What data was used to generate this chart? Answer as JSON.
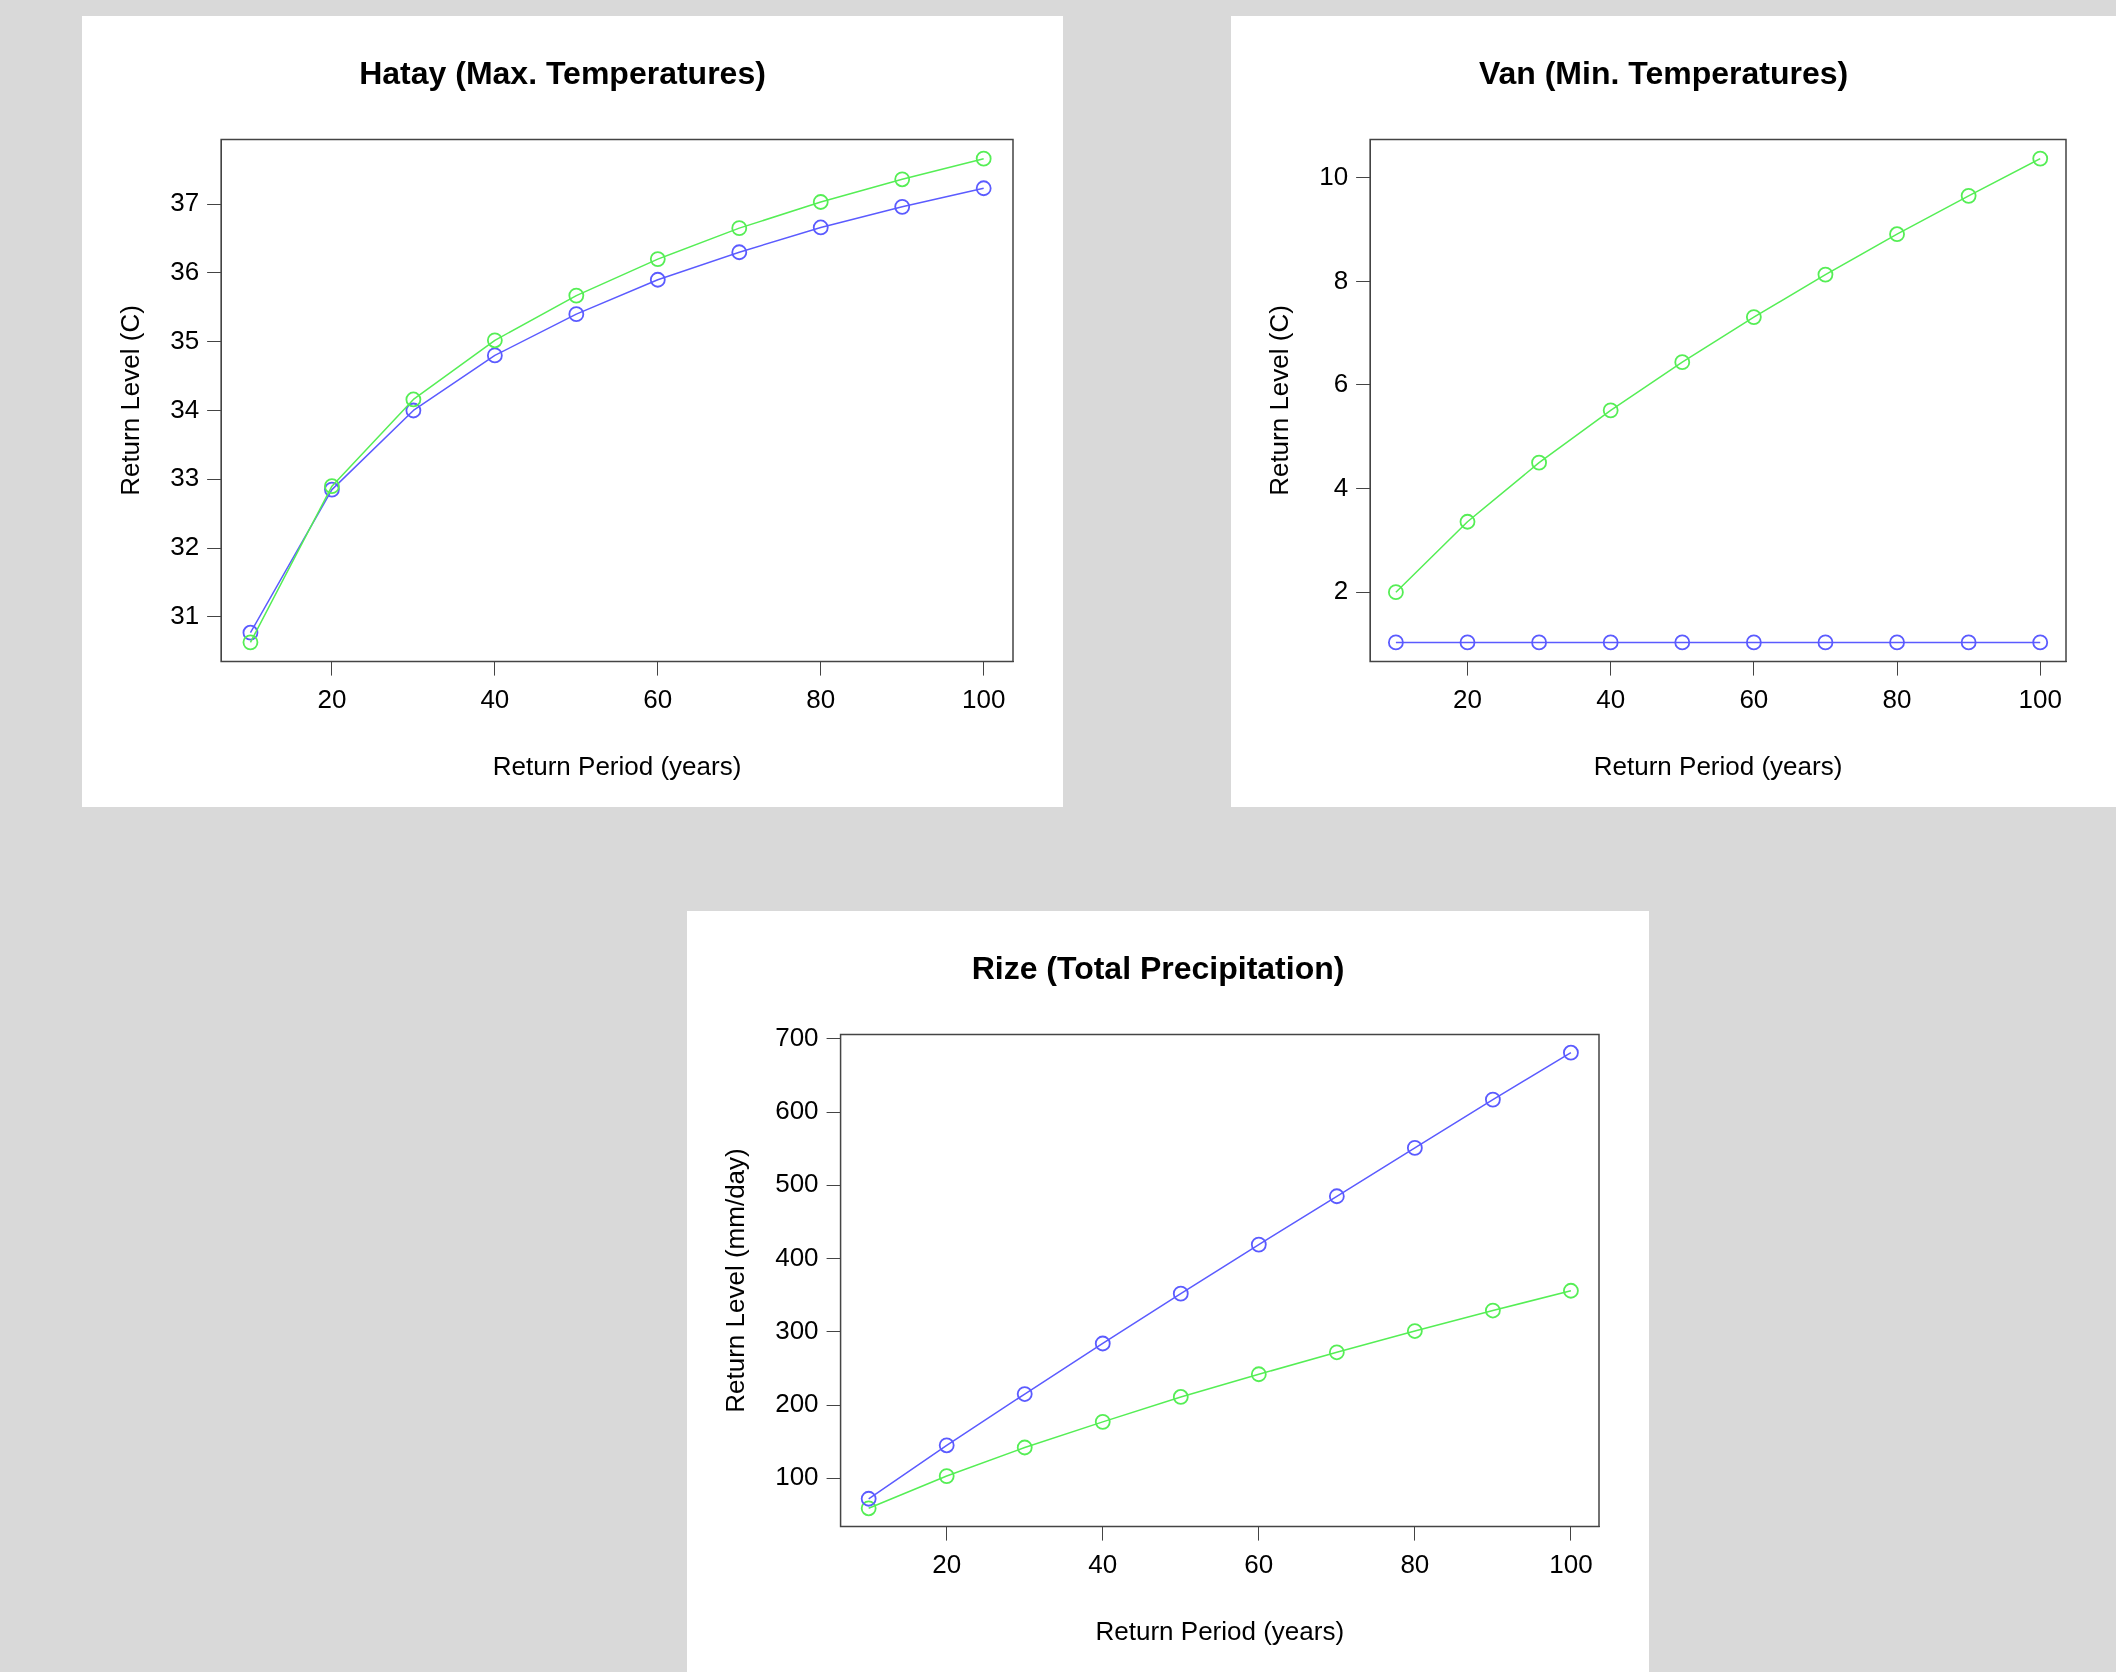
{
  "chart_data": [
    {
      "type": "line",
      "title": "Hatay (Max. Temperatures)",
      "xlabel": "Return Period (years)",
      "ylabel": "Return Level (C)",
      "x": [
        10,
        20,
        30,
        40,
        50,
        60,
        70,
        80,
        90,
        100
      ],
      "xlim": [
        6.4,
        103.6
      ],
      "xticks": [
        20,
        40,
        60,
        80,
        100
      ],
      "ylim": [
        30.35,
        37.94
      ],
      "yticks": [
        31,
        32,
        33,
        34,
        35,
        36,
        37
      ],
      "grid": false,
      "marker": "circle",
      "line_style": "solid",
      "series": [
        {
          "color": "#55ee55",
          "values": [
            30.63,
            32.9,
            34.16,
            35.02,
            35.67,
            36.2,
            36.65,
            37.03,
            37.36,
            37.66
          ]
        },
        {
          "color": "#5b5bff",
          "values": [
            30.77,
            32.85,
            34.0,
            34.8,
            35.4,
            35.9,
            36.3,
            36.66,
            36.96,
            37.23
          ]
        }
      ]
    },
    {
      "type": "line",
      "title": "Van (Min. Temperatures)",
      "xlabel": "Return Period (years)",
      "ylabel": "Return Level (C)",
      "x": [
        10,
        20,
        30,
        40,
        50,
        60,
        70,
        80,
        90,
        100
      ],
      "xlim": [
        6.4,
        103.6
      ],
      "xticks": [
        20,
        40,
        60,
        80,
        100
      ],
      "ylim": [
        0.66,
        10.74
      ],
      "yticks": [
        2,
        4,
        6,
        8,
        10
      ],
      "grid": false,
      "marker": "circle",
      "line_style": "solid",
      "series": [
        {
          "color": "#55ee55",
          "values": [
            2.0,
            3.36,
            4.5,
            5.51,
            6.44,
            7.31,
            8.13,
            8.91,
            9.65,
            10.37
          ]
        },
        {
          "color": "#5b5bff",
          "values": [
            1.03,
            1.03,
            1.03,
            1.03,
            1.03,
            1.03,
            1.03,
            1.03,
            1.03,
            1.03
          ]
        }
      ]
    },
    {
      "type": "line",
      "title": "Rize (Total Precipitation)",
      "xlabel": "Return Period (years)",
      "ylabel": "Return Level (mm/day)",
      "x": [
        10,
        20,
        30,
        40,
        50,
        60,
        70,
        80,
        90,
        100
      ],
      "xlim": [
        6.4,
        103.6
      ],
      "xticks": [
        20,
        40,
        60,
        80,
        100
      ],
      "ylim": [
        34,
        706
      ],
      "yticks": [
        100,
        200,
        300,
        400,
        500,
        600,
        700
      ],
      "grid": false,
      "marker": "circle",
      "line_style": "solid",
      "series": [
        {
          "color": "#5b5bff",
          "values": [
            72,
            145,
            215,
            284,
            352,
            419,
            485,
            551,
            617,
            681
          ]
        },
        {
          "color": "#55ee55",
          "values": [
            59,
            103,
            142,
            177,
            211,
            242,
            272,
            301,
            329,
            356
          ]
        }
      ]
    }
  ]
}
